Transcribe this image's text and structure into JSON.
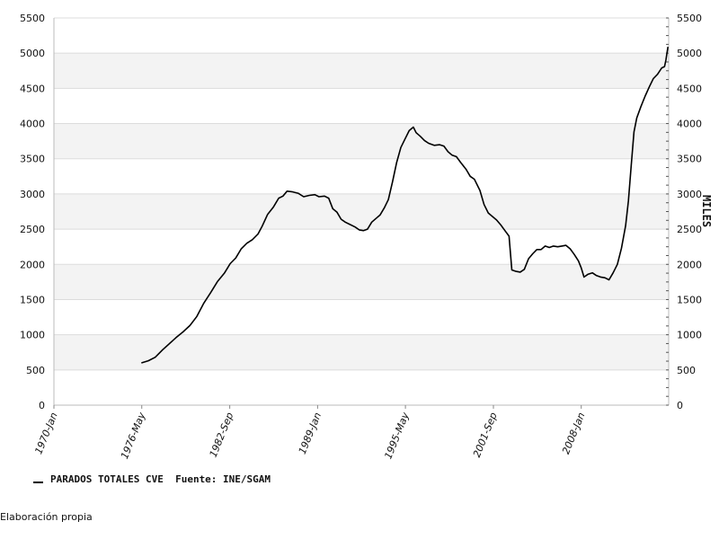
{
  "chart_data": {
    "type": "line",
    "ylabel": "MILES",
    "ylim": [
      0,
      5500
    ],
    "yticks": [
      0,
      500,
      1000,
      1500,
      2000,
      2500,
      3000,
      3500,
      4000,
      4500,
      5000,
      5500
    ],
    "xlim": [
      1970.0,
      2014.3
    ],
    "xticks": [
      {
        "label": "1970-Jan",
        "x": 1970.0
      },
      {
        "label": "1976-May",
        "x": 1976.33
      },
      {
        "label": "1982-Sep",
        "x": 1982.67
      },
      {
        "label": "1989-Jan",
        "x": 1989.0
      },
      {
        "label": "1995-May",
        "x": 1995.33
      },
      {
        "label": "2001-Sep",
        "x": 2001.67
      },
      {
        "label": "2008-Jan",
        "x": 2008.0
      }
    ],
    "grid": "alternating horizontal bands",
    "legend_position": "bottom-left",
    "series": [
      {
        "name": "PARADOS TOTALES CVE  Fuente: INE/SGAM",
        "color": "#000000",
        "points": [
          [
            1976.3,
            600
          ],
          [
            1976.8,
            630
          ],
          [
            1977.3,
            680
          ],
          [
            1977.8,
            780
          ],
          [
            1978.3,
            870
          ],
          [
            1978.8,
            960
          ],
          [
            1979.3,
            1040
          ],
          [
            1979.8,
            1130
          ],
          [
            1980.3,
            1260
          ],
          [
            1980.8,
            1450
          ],
          [
            1981.3,
            1600
          ],
          [
            1981.8,
            1760
          ],
          [
            1982.3,
            1880
          ],
          [
            1982.7,
            2010
          ],
          [
            1983.1,
            2090
          ],
          [
            1983.5,
            2220
          ],
          [
            1983.9,
            2300
          ],
          [
            1984.3,
            2350
          ],
          [
            1984.7,
            2430
          ],
          [
            1985.0,
            2540
          ],
          [
            1985.4,
            2710
          ],
          [
            1985.8,
            2810
          ],
          [
            1986.2,
            2940
          ],
          [
            1986.5,
            2970
          ],
          [
            1986.8,
            3040
          ],
          [
            1987.2,
            3030
          ],
          [
            1987.6,
            3010
          ],
          [
            1988.0,
            2960
          ],
          [
            1988.4,
            2980
          ],
          [
            1988.8,
            2990
          ],
          [
            1989.1,
            2960
          ],
          [
            1989.5,
            2970
          ],
          [
            1989.8,
            2940
          ],
          [
            1990.1,
            2790
          ],
          [
            1990.4,
            2740
          ],
          [
            1990.7,
            2640
          ],
          [
            1991.0,
            2600
          ],
          [
            1991.3,
            2570
          ],
          [
            1991.7,
            2530
          ],
          [
            1992.0,
            2490
          ],
          [
            1992.3,
            2480
          ],
          [
            1992.6,
            2500
          ],
          [
            1992.9,
            2600
          ],
          [
            1993.2,
            2650
          ],
          [
            1993.5,
            2700
          ],
          [
            1993.8,
            2800
          ],
          [
            1994.1,
            2920
          ],
          [
            1994.4,
            3170
          ],
          [
            1994.7,
            3450
          ],
          [
            1995.0,
            3660
          ],
          [
            1995.3,
            3780
          ],
          [
            1995.6,
            3900
          ],
          [
            1995.9,
            3950
          ],
          [
            1996.1,
            3870
          ],
          [
            1996.4,
            3820
          ],
          [
            1996.7,
            3760
          ],
          [
            1997.0,
            3720
          ],
          [
            1997.4,
            3690
          ],
          [
            1997.8,
            3700
          ],
          [
            1998.1,
            3680
          ],
          [
            1998.4,
            3600
          ],
          [
            1998.7,
            3550
          ],
          [
            1999.0,
            3530
          ],
          [
            1999.3,
            3450
          ],
          [
            1999.7,
            3350
          ],
          [
            2000.0,
            3250
          ],
          [
            2000.3,
            3210
          ],
          [
            2000.7,
            3050
          ],
          [
            2001.0,
            2850
          ],
          [
            2001.3,
            2730
          ],
          [
            2001.6,
            2680
          ],
          [
            2001.9,
            2630
          ],
          [
            2002.2,
            2560
          ],
          [
            2002.5,
            2480
          ],
          [
            2002.8,
            2400
          ],
          [
            2003.0,
            1920
          ],
          [
            2003.3,
            1900
          ],
          [
            2003.6,
            1890
          ],
          [
            2003.9,
            1930
          ],
          [
            2004.2,
            2080
          ],
          [
            2004.5,
            2150
          ],
          [
            2004.8,
            2210
          ],
          [
            2005.1,
            2210
          ],
          [
            2005.4,
            2260
          ],
          [
            2005.7,
            2240
          ],
          [
            2006.0,
            2260
          ],
          [
            2006.3,
            2250
          ],
          [
            2006.6,
            2260
          ],
          [
            2006.9,
            2270
          ],
          [
            2007.2,
            2220
          ],
          [
            2007.5,
            2140
          ],
          [
            2007.8,
            2050
          ],
          [
            2008.0,
            1950
          ],
          [
            2008.2,
            1820
          ],
          [
            2008.5,
            1860
          ],
          [
            2008.8,
            1880
          ],
          [
            2009.1,
            1840
          ],
          [
            2009.4,
            1820
          ],
          [
            2009.7,
            1810
          ],
          [
            2010.0,
            1780
          ],
          [
            2010.3,
            1880
          ],
          [
            2010.6,
            2000
          ],
          [
            2010.9,
            2230
          ],
          [
            2011.2,
            2550
          ],
          [
            2011.4,
            2900
          ],
          [
            2011.6,
            3400
          ],
          [
            2011.8,
            3880
          ],
          [
            2012.0,
            4080
          ],
          [
            2012.3,
            4240
          ],
          [
            2012.6,
            4390
          ],
          [
            2012.9,
            4520
          ],
          [
            2013.2,
            4640
          ],
          [
            2013.5,
            4700
          ],
          [
            2013.8,
            4790
          ],
          [
            2014.0,
            4810
          ],
          [
            2014.1,
            4900
          ],
          [
            2014.25,
            5090
          ]
        ]
      }
    ]
  },
  "footer": {
    "text": "Elaboración propia"
  }
}
